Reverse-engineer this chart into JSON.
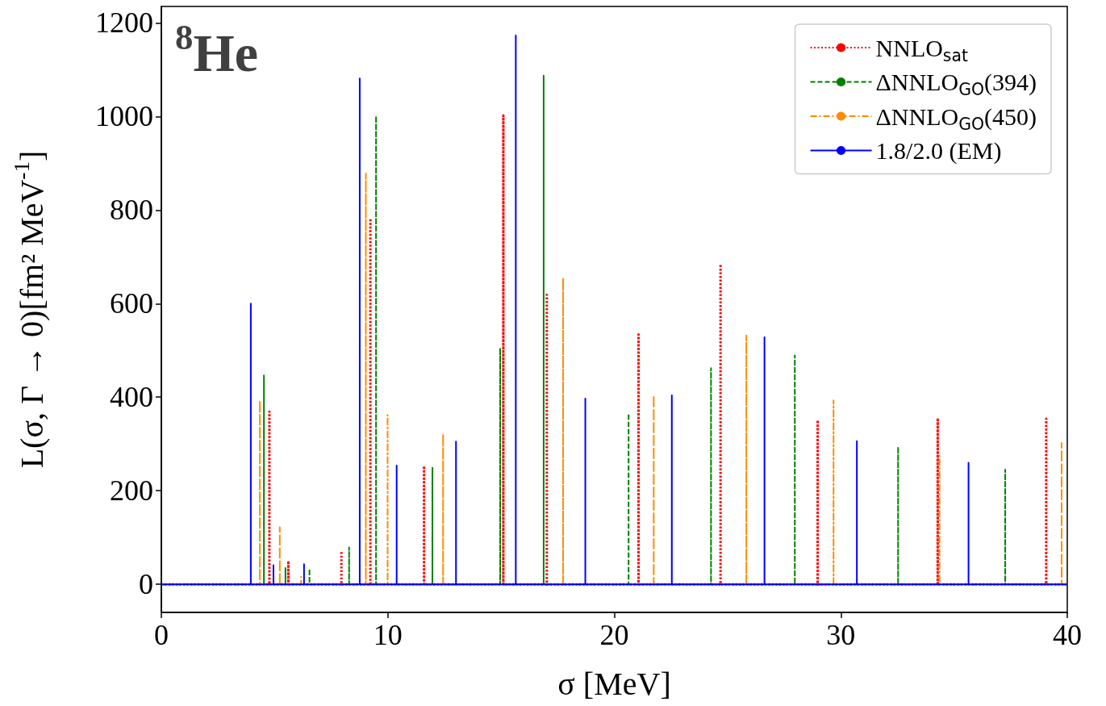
{
  "chart_data": {
    "type": "line",
    "title": "$^{8}$He",
    "xlabel": "σ [MeV]",
    "ylabel": "L(σ, Γ → 0)[fm² MeV$^{-1}$]",
    "xlim": [
      0,
      40
    ],
    "xticks": [
      0,
      10,
      20,
      30,
      40
    ],
    "ylim": [
      -60,
      1235
    ],
    "yticks": [
      0,
      200,
      400,
      600,
      800,
      1000,
      1200
    ],
    "grid": false,
    "legend": "top right",
    "series": [
      {
        "name": "NNLO$_{sat}$",
        "color": "#ff0000",
        "line_style": "dotted",
        "x": [
          0,
          4.77,
          4.77,
          4.77,
          5.61,
          5.61,
          5.61,
          7.95,
          7.95,
          7.95,
          9.23,
          9.23,
          9.23,
          11.6,
          11.6,
          11.6,
          15.1,
          15.1,
          15.1,
          17.02,
          17.02,
          17.02,
          21.07,
          21.07,
          21.07,
          24.69,
          24.69,
          24.69,
          28.98,
          28.98,
          28.98,
          34.28,
          34.28,
          34.28,
          39.07,
          39.07,
          39.07,
          40
        ],
        "values": [
          0,
          0,
          369,
          0,
          0,
          50,
          0,
          0,
          71,
          0,
          0,
          782,
          0,
          0,
          253,
          0,
          0,
          1002,
          0,
          0,
          619,
          0,
          0,
          534,
          0,
          0,
          684,
          0,
          0,
          351,
          0,
          0,
          355,
          0,
          0,
          354,
          0,
          0
        ]
      },
      {
        "name": "ΔNNLO$_{GO}$(394)",
        "color": "#008000",
        "line_style": "dashed",
        "x": [
          0,
          4.53,
          4.53,
          4.53,
          5.48,
          5.48,
          5.48,
          6.54,
          6.54,
          6.54,
          8.29,
          8.29,
          8.29,
          9.48,
          9.48,
          9.48,
          11.97,
          11.97,
          11.97,
          14.96,
          14.96,
          14.96,
          16.88,
          16.88,
          16.88,
          20.63,
          20.63,
          20.63,
          24.27,
          24.27,
          24.27,
          27.97,
          27.97,
          27.97,
          32.53,
          32.53,
          32.53,
          37.26,
          37.26,
          37.26,
          40
        ],
        "values": [
          0,
          0,
          448,
          0,
          0,
          35,
          0,
          0,
          33,
          0,
          0,
          79,
          0,
          0,
          1001,
          0,
          0,
          249,
          0,
          0,
          505,
          0,
          0,
          1087,
          0,
          0,
          365,
          0,
          0,
          462,
          0,
          0,
          489,
          0,
          0,
          294,
          0,
          0,
          245,
          0,
          0
        ]
      },
      {
        "name": "ΔNNLO$_{GO}$(450)",
        "color": "#ff8c00",
        "line_style": "dashdot",
        "x": [
          0,
          4.35,
          4.35,
          4.35,
          5.23,
          5.23,
          5.23,
          6.17,
          6.17,
          6.17,
          9.03,
          9.03,
          9.03,
          9.99,
          9.99,
          9.99,
          12.44,
          12.44,
          12.44,
          17.74,
          17.74,
          17.74,
          21.74,
          21.74,
          21.74,
          25.83,
          25.83,
          25.83,
          29.68,
          29.68,
          29.68,
          34.36,
          34.36,
          34.36,
          39.75,
          39.75,
          39.75,
          40
        ],
        "values": [
          0,
          0,
          393,
          0,
          0,
          122,
          0,
          0,
          16,
          0,
          0,
          878,
          0,
          0,
          362,
          0,
          0,
          321,
          0,
          0,
          655,
          0,
          0,
          404,
          0,
          0,
          532,
          0,
          0,
          393,
          0,
          0,
          275,
          0,
          0,
          302,
          0,
          0
        ]
      },
      {
        "name": "1.8/2.0 (EM)",
        "color": "#0000ff",
        "line_style": "solid",
        "x": [
          0,
          3.95,
          3.95,
          3.95,
          4.95,
          4.95,
          4.95,
          6.3,
          6.3,
          6.3,
          8.76,
          8.76,
          8.76,
          10.39,
          10.39,
          10.39,
          13.01,
          13.01,
          13.01,
          15.65,
          15.65,
          15.65,
          18.72,
          18.72,
          18.72,
          22.54,
          22.54,
          22.54,
          26.63,
          26.63,
          26.63,
          30.71,
          30.71,
          30.71,
          35.64,
          35.64,
          35.64,
          40
        ],
        "values": [
          0,
          0,
          600,
          0,
          0,
          41,
          0,
          0,
          43,
          0,
          0,
          1081,
          0,
          0,
          254,
          0,
          0,
          305,
          0,
          0,
          1173,
          0,
          0,
          397,
          0,
          0,
          404,
          0,
          0,
          528,
          0,
          0,
          306,
          0,
          0,
          260,
          0,
          0
        ]
      }
    ]
  }
}
